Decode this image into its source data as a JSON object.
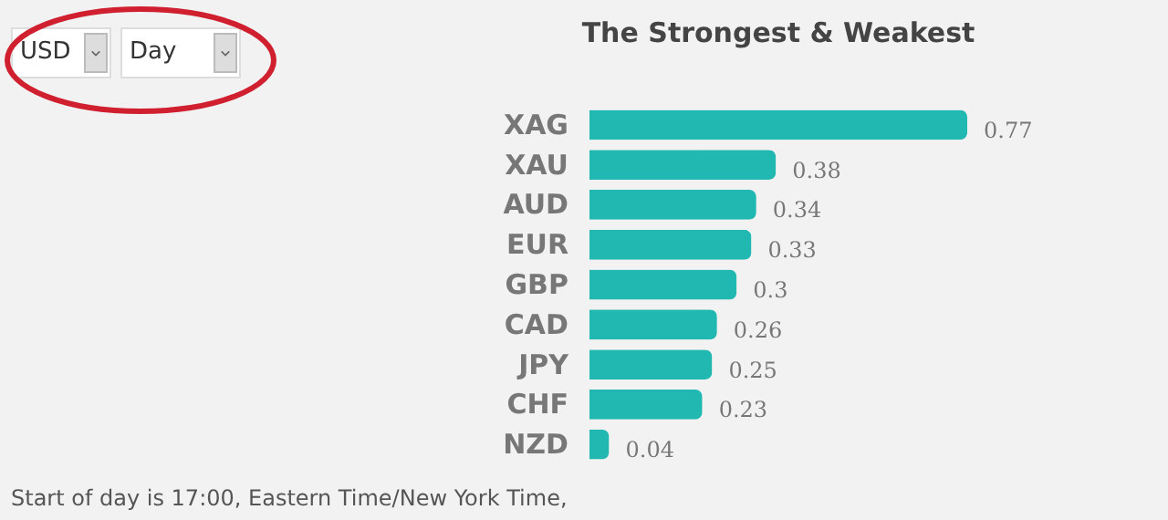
{
  "chart_data": {
    "type": "bar",
    "orientation": "horizontal",
    "title": "The Strongest & Weakest",
    "categories": [
      "XAG",
      "XAU",
      "AUD",
      "EUR",
      "GBP",
      "CAD",
      "JPY",
      "CHF",
      "NZD"
    ],
    "values": [
      0.77,
      0.38,
      0.34,
      0.33,
      0.3,
      0.26,
      0.25,
      0.23,
      0.04
    ],
    "color": "#20b8b0",
    "data_labels": true,
    "tick_labels": "y",
    "annotations": [
      "USD",
      "Day",
      "Start of day is 17:00, Eastern Time/New York Time,"
    ]
  }
}
